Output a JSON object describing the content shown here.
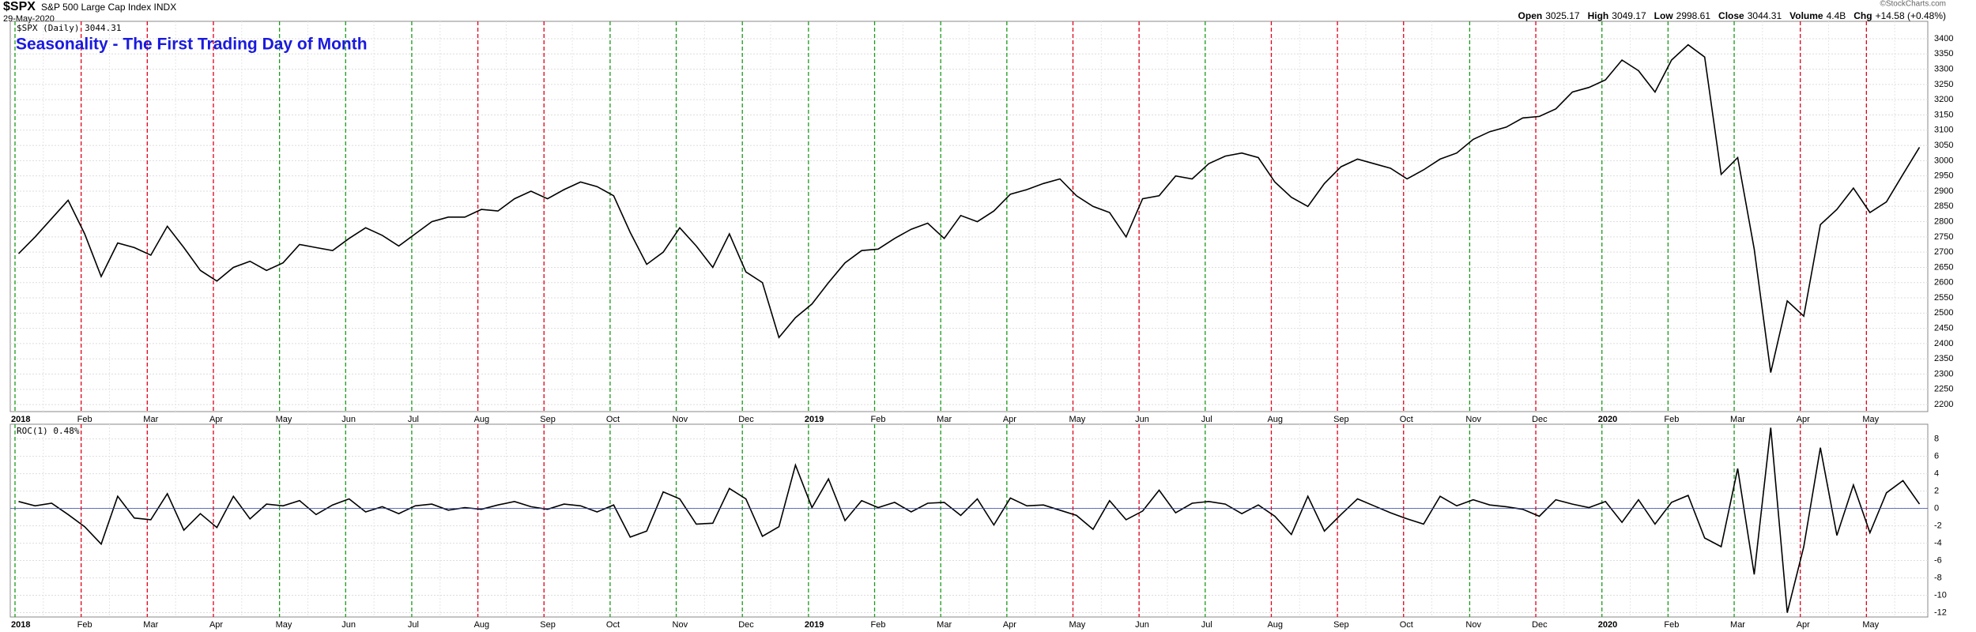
{
  "header": {
    "symbol": "$SPX",
    "name": "S&P 500 Large Cap Index INDX",
    "date": "29-May-2020",
    "stats": [
      {
        "label": "Open",
        "value": "3025.17"
      },
      {
        "label": "High",
        "value": "3049.17"
      },
      {
        "label": "Low",
        "value": "2998.61"
      },
      {
        "label": "Close",
        "value": "3044.31"
      },
      {
        "label": "Volume",
        "value": "4.4B"
      },
      {
        "label": "Chg",
        "value": "+14.58 (+0.48%)"
      }
    ],
    "credit": "©StockCharts.com"
  },
  "chart_data": [
    {
      "type": "line",
      "title": "Seasonality - The First Trading Day of Month",
      "legend": "$SPX (Daily) 3044.31",
      "categories": [
        "2018",
        "Feb",
        "Mar",
        "Apr",
        "May",
        "Jun",
        "Jul",
        "Aug",
        "Sep",
        "Oct",
        "Nov",
        "Dec",
        "2019",
        "Feb",
        "Mar",
        "Apr",
        "May",
        "Jun",
        "Jul",
        "Aug",
        "Sep",
        "Oct",
        "Nov",
        "Dec",
        "2020",
        "Feb",
        "Mar",
        "Apr",
        "May"
      ],
      "marker_colors": [
        "#1a9a1a",
        "#e0001a",
        "#e0001a",
        "#e0001a",
        "#1a9a1a",
        "#1a9a1a",
        "#1a9a1a",
        "#e0001a",
        "#e0001a",
        "#1a9a1a",
        "#1a9a1a",
        "#1a9a1a",
        "#1a9a1a",
        "#1a9a1a",
        "#1a9a1a",
        "#1a9a1a",
        "#e0001a",
        "#e0001a",
        "#1a9a1a",
        "#e0001a",
        "#e0001a",
        "#e0001a",
        "#1a9a1a",
        "#e0001a",
        "#1a9a1a",
        "#1a9a1a",
        "#1a9a1a",
        "#e0001a",
        "#e0001a"
      ],
      "series": [
        {
          "name": "$SPX",
          "color": "#000000",
          "values": [
            [
              2695,
              2750,
              2810,
              2870
            ],
            [
              2760,
              2620,
              2730,
              2715
            ],
            [
              2690,
              2785,
              2715,
              2640
            ],
            [
              2605,
              2650,
              2670,
              2640
            ],
            [
              2665,
              2725,
              2715,
              2705
            ],
            [
              2745,
              2780,
              2755,
              2720
            ],
            [
              2760,
              2800,
              2815,
              2815
            ],
            [
              2840,
              2835,
              2875,
              2900
            ],
            [
              2875,
              2905,
              2930,
              2915
            ],
            [
              2885,
              2765,
              2660,
              2700
            ],
            [
              2780,
              2720,
              2650,
              2760
            ],
            [
              2635,
              2600,
              2420,
              2485
            ],
            [
              2530,
              2600,
              2665,
              2705
            ],
            [
              2710,
              2745,
              2775,
              2795
            ],
            [
              2745,
              2820,
              2800,
              2835
            ],
            [
              2890,
              2905,
              2925,
              2940
            ],
            [
              2885,
              2850,
              2830,
              2750
            ],
            [
              2875,
              2885,
              2950,
              2940
            ],
            [
              2990,
              3015,
              3025,
              3010
            ],
            [
              2930,
              2880,
              2850,
              2925
            ],
            [
              2980,
              3005,
              2990,
              2975
            ],
            [
              2940,
              2970,
              3005,
              3025
            ],
            [
              3070,
              3095,
              3110,
              3140
            ],
            [
              3145,
              3170,
              3225,
              3240
            ],
            [
              3265,
              3330,
              3295,
              3225
            ],
            [
              3330,
              3380,
              3340,
              2955
            ],
            [
              3010,
              2710,
              2305,
              2540
            ],
            [
              2490,
              2790,
              2840,
              2910
            ],
            [
              2830,
              2865,
              2955,
              3044
            ]
          ]
        }
      ],
      "ylim": [
        2177,
        3457
      ],
      "yticks": [
        2200,
        2250,
        2300,
        2350,
        2400,
        2450,
        2500,
        2550,
        2600,
        2650,
        2700,
        2750,
        2800,
        2850,
        2900,
        2950,
        3000,
        3050,
        3100,
        3150,
        3200,
        3250,
        3300,
        3350,
        3400
      ],
      "grid": true
    },
    {
      "type": "line",
      "legend": "ROC(1) 0.48%",
      "categories": [
        "2018",
        "Feb",
        "Mar",
        "Apr",
        "May",
        "Jun",
        "Jul",
        "Aug",
        "Sep",
        "Oct",
        "Nov",
        "Dec",
        "2019",
        "Feb",
        "Mar",
        "Apr",
        "May",
        "Jun",
        "Jul",
        "Aug",
        "Sep",
        "Oct",
        "Nov",
        "Dec",
        "2020",
        "Feb",
        "Mar",
        "Apr",
        "May"
      ],
      "marker_colors": [
        "#1a9a1a",
        "#e0001a",
        "#e0001a",
        "#e0001a",
        "#1a9a1a",
        "#1a9a1a",
        "#1a9a1a",
        "#e0001a",
        "#e0001a",
        "#1a9a1a",
        "#1a9a1a",
        "#1a9a1a",
        "#1a9a1a",
        "#1a9a1a",
        "#1a9a1a",
        "#1a9a1a",
        "#e0001a",
        "#e0001a",
        "#1a9a1a",
        "#e0001a",
        "#e0001a",
        "#e0001a",
        "#1a9a1a",
        "#e0001a",
        "#1a9a1a",
        "#1a9a1a",
        "#1a9a1a",
        "#e0001a",
        "#e0001a"
      ],
      "series": [
        {
          "name": "ROC(1)",
          "color": "#000000",
          "values": [
            [
              0.8,
              0.3,
              0.6,
              -0.7
            ],
            [
              -2.1,
              -4.1,
              1.4,
              -1.1
            ],
            [
              -1.3,
              1.7,
              -2.5,
              -0.6
            ],
            [
              -2.2,
              1.4,
              -1.2,
              0.5
            ],
            [
              0.3,
              0.9,
              -0.7,
              0.4
            ],
            [
              1.1,
              -0.4,
              0.2,
              -0.6
            ],
            [
              0.3,
              0.5,
              -0.2,
              0.1
            ],
            [
              -0.1,
              0.4,
              0.8,
              0.2
            ],
            [
              -0.1,
              0.5,
              0.3,
              -0.4
            ],
            [
              0.4,
              -3.3,
              -2.6,
              1.9
            ],
            [
              1.1,
              -1.8,
              -1.7,
              2.3
            ],
            [
              1.1,
              -3.2,
              -2.1,
              5.0
            ],
            [
              0.1,
              3.4,
              -1.4,
              0.9
            ],
            [
              0.1,
              0.7,
              -0.4,
              0.6
            ],
            [
              0.7,
              -0.8,
              1.1,
              -1.9
            ],
            [
              1.2,
              0.3,
              0.4,
              -0.2
            ],
            [
              -0.8,
              -2.4,
              0.9,
              -1.3
            ],
            [
              -0.3,
              2.1,
              -0.5,
              0.6
            ],
            [
              0.8,
              0.5,
              -0.6,
              0.4
            ],
            [
              -0.9,
              -3.0,
              1.4,
              -2.6
            ],
            [
              -0.7,
              1.1,
              0.3,
              -0.5
            ],
            [
              -1.2,
              -1.8,
              1.4,
              0.3
            ],
            [
              1.0,
              0.4,
              0.2,
              -0.1
            ],
            [
              -0.9,
              1.0,
              0.5,
              0.1
            ],
            [
              0.8,
              -1.6,
              1.0,
              -1.8
            ],
            [
              0.7,
              1.5,
              -3.4,
              -4.4
            ],
            [
              4.6,
              -7.6,
              9.3,
              -12.0
            ],
            [
              -4.4,
              7.0,
              -3.1,
              2.7
            ],
            [
              -2.8,
              1.8,
              3.2,
              0.5
            ]
          ]
        }
      ],
      "ylim": [
        -12.5,
        9.7
      ],
      "yticks": [
        -12,
        -10,
        -8,
        -6,
        -4,
        -2,
        0,
        2,
        4,
        6,
        8
      ],
      "grid": true
    }
  ]
}
